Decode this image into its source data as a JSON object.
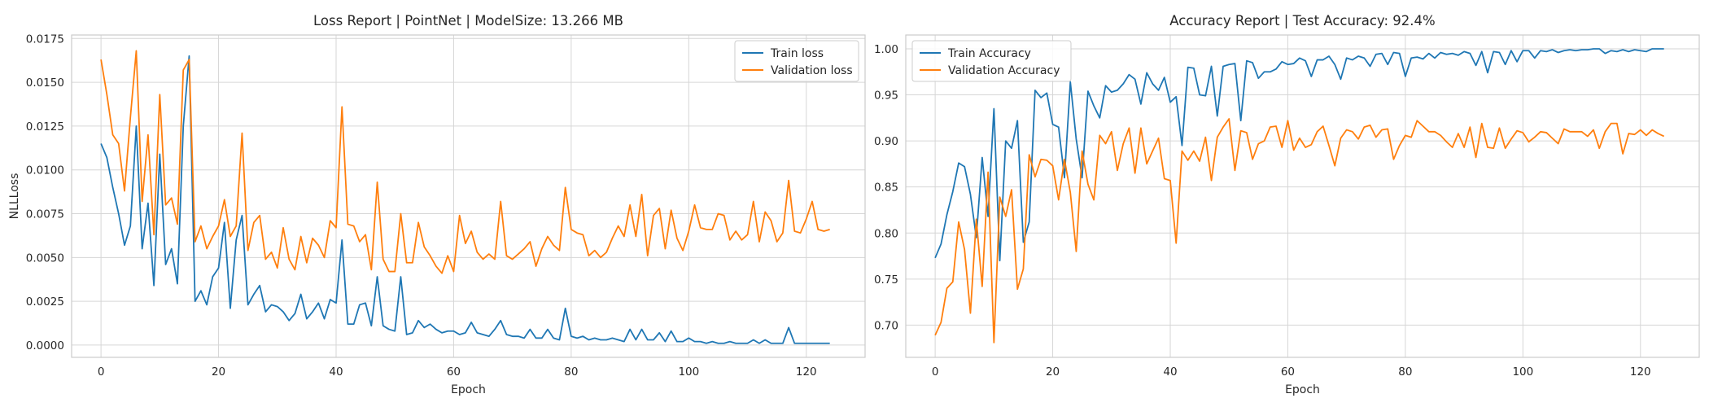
{
  "chart_data": [
    {
      "type": "line",
      "title": "Loss Report | PointNet | ModelSize: 13.266 MB",
      "xlabel": "Epoch",
      "ylabel": "NLLLoss",
      "xlim": [
        -5,
        130
      ],
      "ylim": [
        -0.0007,
        0.0177
      ],
      "xticks": [
        0,
        20,
        40,
        60,
        80,
        100,
        120
      ],
      "xtick_labels": [
        "0",
        "20",
        "40",
        "60",
        "80",
        "100",
        "120"
      ],
      "yticks": [
        0.0,
        0.0025,
        0.005,
        0.0075,
        0.01,
        0.0125,
        0.015,
        0.0175
      ],
      "ytick_labels": [
        "0.0000",
        "0.0025",
        "0.0050",
        "0.0075",
        "0.0100",
        "0.0125",
        "0.0150",
        "0.0175"
      ],
      "grid": true,
      "legend_position": "upper-right",
      "x": [
        0,
        1,
        2,
        3,
        4,
        5,
        6,
        7,
        8,
        9,
        10,
        11,
        12,
        13,
        14,
        15,
        16,
        17,
        18,
        19,
        20,
        21,
        22,
        23,
        24,
        25,
        26,
        27,
        28,
        29,
        30,
        31,
        32,
        33,
        34,
        35,
        36,
        37,
        38,
        39,
        40,
        41,
        42,
        43,
        44,
        45,
        46,
        47,
        48,
        49,
        50,
        51,
        52,
        53,
        54,
        55,
        56,
        57,
        58,
        59,
        60,
        61,
        62,
        63,
        64,
        65,
        66,
        67,
        68,
        69,
        70,
        71,
        72,
        73,
        74,
        75,
        76,
        77,
        78,
        79,
        80,
        81,
        82,
        83,
        84,
        85,
        86,
        87,
        88,
        89,
        90,
        91,
        92,
        93,
        94,
        95,
        96,
        97,
        98,
        99,
        100,
        101,
        102,
        103,
        104,
        105,
        106,
        107,
        108,
        109,
        110,
        111,
        112,
        113,
        114,
        115,
        116,
        117,
        118,
        119,
        120,
        121,
        122,
        123,
        124
      ],
      "series": [
        {
          "name": "Train loss",
          "color": "#1f77b4",
          "values": [
            0.0115,
            0.0107,
            0.009,
            0.0075,
            0.0057,
            0.0068,
            0.0125,
            0.0055,
            0.0081,
            0.0034,
            0.0109,
            0.0046,
            0.0055,
            0.0035,
            0.0125,
            0.0165,
            0.0025,
            0.0031,
            0.0023,
            0.0039,
            0.0044,
            0.007,
            0.0021,
            0.006,
            0.0074,
            0.0023,
            0.0029,
            0.0034,
            0.0019,
            0.0023,
            0.0022,
            0.0019,
            0.0014,
            0.0018,
            0.0029,
            0.0015,
            0.0019,
            0.0024,
            0.0015,
            0.0026,
            0.0024,
            0.006,
            0.0012,
            0.0012,
            0.0023,
            0.0024,
            0.0011,
            0.0039,
            0.0011,
            0.0009,
            0.0008,
            0.0039,
            0.0006,
            0.0007,
            0.0014,
            0.001,
            0.0012,
            0.0009,
            0.0007,
            0.0008,
            0.0008,
            0.0006,
            0.0007,
            0.0013,
            0.0007,
            0.0006,
            0.0005,
            0.0009,
            0.0014,
            0.0006,
            0.0005,
            0.0005,
            0.0004,
            0.0009,
            0.0004,
            0.0004,
            0.0009,
            0.0004,
            0.0003,
            0.0021,
            0.0005,
            0.0004,
            0.0005,
            0.0003,
            0.0004,
            0.0003,
            0.0003,
            0.0004,
            0.0003,
            0.0002,
            0.0009,
            0.0003,
            0.0009,
            0.0003,
            0.0003,
            0.0007,
            0.0002,
            0.0008,
            0.0002,
            0.0002,
            0.0004,
            0.0002,
            0.0002,
            0.0001,
            0.0002,
            0.0001,
            0.0001,
            0.0002,
            0.0001,
            0.0001,
            0.0001,
            0.0003,
            0.0001,
            0.0003,
            0.0001,
            0.0001,
            0.0001,
            0.001,
            0.0001,
            0.0001,
            0.0001,
            0.0001,
            0.0001,
            0.0001,
            0.0001
          ]
        },
        {
          "name": "Validation loss",
          "color": "#ff7f0e",
          "values": [
            0.0163,
            0.0143,
            0.012,
            0.0115,
            0.0088,
            0.013,
            0.0168,
            0.0082,
            0.012,
            0.0063,
            0.0143,
            0.008,
            0.0084,
            0.0069,
            0.0157,
            0.0163,
            0.0059,
            0.0068,
            0.0055,
            0.0062,
            0.0068,
            0.0083,
            0.0062,
            0.0068,
            0.0121,
            0.0054,
            0.007,
            0.0074,
            0.0049,
            0.0053,
            0.0044,
            0.0067,
            0.0049,
            0.0043,
            0.0062,
            0.0047,
            0.0061,
            0.0057,
            0.005,
            0.0071,
            0.0067,
            0.0136,
            0.0069,
            0.0068,
            0.0059,
            0.0063,
            0.0043,
            0.0093,
            0.0049,
            0.0042,
            0.0042,
            0.0075,
            0.0047,
            0.0047,
            0.007,
            0.0056,
            0.0051,
            0.0045,
            0.0041,
            0.0051,
            0.0042,
            0.0074,
            0.0058,
            0.0065,
            0.0053,
            0.0049,
            0.0052,
            0.0049,
            0.0082,
            0.0051,
            0.0049,
            0.0052,
            0.0055,
            0.0059,
            0.0045,
            0.0055,
            0.0062,
            0.0057,
            0.0054,
            0.009,
            0.0066,
            0.0064,
            0.0063,
            0.0051,
            0.0054,
            0.005,
            0.0053,
            0.0061,
            0.0068,
            0.0062,
            0.008,
            0.0062,
            0.0086,
            0.0051,
            0.0074,
            0.0078,
            0.0055,
            0.0077,
            0.0061,
            0.0054,
            0.0065,
            0.008,
            0.0067,
            0.0066,
            0.0066,
            0.0075,
            0.0074,
            0.006,
            0.0065,
            0.006,
            0.0063,
            0.0082,
            0.0059,
            0.0076,
            0.0071,
            0.0059,
            0.0064,
            0.0094,
            0.0065,
            0.0064,
            0.0072,
            0.0082,
            0.0066,
            0.0065,
            0.0066
          ]
        }
      ]
    },
    {
      "type": "line",
      "title": "Accuracy Report | Test Accuracy: 92.4%",
      "xlabel": "Epoch",
      "ylabel": "",
      "xlim": [
        -5,
        130
      ],
      "ylim": [
        0.665,
        1.015
      ],
      "xticks": [
        0,
        20,
        40,
        60,
        80,
        100,
        120
      ],
      "xtick_labels": [
        "0",
        "20",
        "40",
        "60",
        "80",
        "100",
        "120"
      ],
      "yticks": [
        0.7,
        0.75,
        0.8,
        0.85,
        0.9,
        0.95,
        1.0
      ],
      "ytick_labels": [
        "0.70",
        "0.75",
        "0.80",
        "0.85",
        "0.90",
        "0.95",
        "1.00"
      ],
      "grid": true,
      "legend_position": "upper-left",
      "x": [
        0,
        1,
        2,
        3,
        4,
        5,
        6,
        7,
        8,
        9,
        10,
        11,
        12,
        13,
        14,
        15,
        16,
        17,
        18,
        19,
        20,
        21,
        22,
        23,
        24,
        25,
        26,
        27,
        28,
        29,
        30,
        31,
        32,
        33,
        34,
        35,
        36,
        37,
        38,
        39,
        40,
        41,
        42,
        43,
        44,
        45,
        46,
        47,
        48,
        49,
        50,
        51,
        52,
        53,
        54,
        55,
        56,
        57,
        58,
        59,
        60,
        61,
        62,
        63,
        64,
        65,
        66,
        67,
        68,
        69,
        70,
        71,
        72,
        73,
        74,
        75,
        76,
        77,
        78,
        79,
        80,
        81,
        82,
        83,
        84,
        85,
        86,
        87,
        88,
        89,
        90,
        91,
        92,
        93,
        94,
        95,
        96,
        97,
        98,
        99,
        100,
        101,
        102,
        103,
        104,
        105,
        106,
        107,
        108,
        109,
        110,
        111,
        112,
        113,
        114,
        115,
        116,
        117,
        118,
        119,
        120,
        121,
        122,
        123,
        124
      ],
      "series": [
        {
          "name": "Train Accuracy",
          "color": "#1f77b4",
          "values": [
            0.773,
            0.788,
            0.82,
            0.845,
            0.876,
            0.872,
            0.842,
            0.795,
            0.882,
            0.818,
            0.935,
            0.77,
            0.9,
            0.892,
            0.922,
            0.79,
            0.812,
            0.955,
            0.947,
            0.952,
            0.918,
            0.915,
            0.86,
            0.964,
            0.902,
            0.86,
            0.954,
            0.938,
            0.925,
            0.96,
            0.953,
            0.955,
            0.962,
            0.972,
            0.967,
            0.94,
            0.974,
            0.962,
            0.955,
            0.969,
            0.942,
            0.948,
            0.895,
            0.98,
            0.979,
            0.95,
            0.949,
            0.981,
            0.927,
            0.981,
            0.983,
            0.984,
            0.922,
            0.987,
            0.985,
            0.968,
            0.975,
            0.975,
            0.978,
            0.986,
            0.983,
            0.984,
            0.99,
            0.987,
            0.97,
            0.988,
            0.988,
            0.992,
            0.983,
            0.967,
            0.99,
            0.988,
            0.992,
            0.99,
            0.981,
            0.994,
            0.995,
            0.983,
            0.996,
            0.995,
            0.97,
            0.99,
            0.991,
            0.989,
            0.995,
            0.99,
            0.996,
            0.994,
            0.995,
            0.993,
            0.997,
            0.995,
            0.982,
            0.997,
            0.974,
            0.997,
            0.996,
            0.983,
            0.998,
            0.986,
            0.998,
            0.998,
            0.99,
            0.998,
            0.997,
            0.999,
            0.996,
            0.998,
            0.999,
            0.998,
            0.999,
            0.999,
            1.0,
            1.0,
            0.995,
            0.998,
            0.997,
            0.999,
            0.997,
            0.999,
            0.998,
            0.997,
            1.0,
            1.0,
            1.0
          ]
        },
        {
          "name": "Validation Accuracy",
          "color": "#ff7f0e",
          "values": [
            0.689,
            0.703,
            0.74,
            0.747,
            0.812,
            0.782,
            0.713,
            0.815,
            0.742,
            0.866,
            0.681,
            0.839,
            0.818,
            0.847,
            0.739,
            0.761,
            0.885,
            0.861,
            0.88,
            0.879,
            0.873,
            0.836,
            0.88,
            0.844,
            0.78,
            0.889,
            0.853,
            0.836,
            0.906,
            0.897,
            0.91,
            0.868,
            0.897,
            0.914,
            0.865,
            0.914,
            0.875,
            0.889,
            0.903,
            0.859,
            0.857,
            0.789,
            0.889,
            0.879,
            0.889,
            0.878,
            0.904,
            0.857,
            0.904,
            0.915,
            0.924,
            0.868,
            0.911,
            0.909,
            0.88,
            0.897,
            0.9,
            0.915,
            0.916,
            0.893,
            0.922,
            0.89,
            0.903,
            0.893,
            0.896,
            0.91,
            0.916,
            0.895,
            0.873,
            0.903,
            0.912,
            0.91,
            0.902,
            0.915,
            0.917,
            0.904,
            0.912,
            0.913,
            0.88,
            0.895,
            0.906,
            0.904,
            0.922,
            0.916,
            0.91,
            0.91,
            0.906,
            0.899,
            0.893,
            0.908,
            0.893,
            0.915,
            0.882,
            0.919,
            0.893,
            0.892,
            0.914,
            0.892,
            0.902,
            0.911,
            0.909,
            0.899,
            0.904,
            0.91,
            0.909,
            0.903,
            0.897,
            0.913,
            0.91,
            0.91,
            0.91,
            0.905,
            0.912,
            0.892,
            0.91,
            0.919,
            0.919,
            0.886,
            0.908,
            0.907,
            0.912,
            0.906,
            0.912,
            0.908,
            0.905
          ]
        }
      ]
    }
  ]
}
